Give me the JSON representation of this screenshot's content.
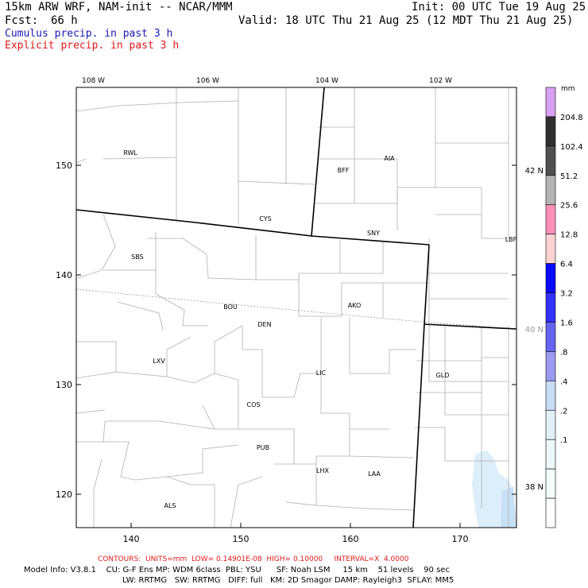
{
  "header": {
    "model_title": "15km ARW WRF, NAM-init -- NCAR/MMM",
    "init": "Init: 00 UTC Tue 19 Aug 25",
    "fcst_label": "Fcst:",
    "fcst_value": "66 h",
    "valid": "Valid: 18 UTC Thu 21 Aug 25 (12 MDT Thu 21 Aug 25)",
    "legend_cumulus": "Cumulus precip. in past 3 h",
    "legend_explicit": "Explicit precip. in past 3 h"
  },
  "colors": {
    "cumulus": "#1a1ab4",
    "explicit": "#e01818",
    "precip_light": "#dceefa"
  },
  "map": {
    "top_lon_labels": [
      "108 W",
      "106 W",
      "104 W",
      "102 W"
    ],
    "bottom_axis_ticks": [
      "140",
      "150",
      "160",
      "170"
    ],
    "left_axis_ticks": [
      "150",
      "140",
      "130",
      "120"
    ],
    "lat_labels": [
      "42 N",
      "40 N",
      "38 N"
    ],
    "stations": [
      "RWL",
      "BFF",
      "AIA",
      "CYS",
      "SNY",
      "LBF",
      "SBS",
      "BOU",
      "AKO",
      "DEN",
      "LXV",
      "LIC",
      "GLD",
      "COS",
      "PUB",
      "LHX",
      "LAA",
      "ALS"
    ]
  },
  "colorbar": {
    "unit": "mm",
    "labels": [
      "204.8",
      "102.4",
      "51.2",
      "25.6",
      "12.8",
      "6.4",
      "3.2",
      "1.6",
      ".8",
      ".4",
      ".2",
      ".1"
    ],
    "colors": [
      "#d8a0f0",
      "#303030",
      "#505050",
      "#b4b4b4",
      "#ff90b8",
      "#ffd2d2",
      "#0a0aff",
      "#3232ff",
      "#6464f0",
      "#9a9af0",
      "#c8dcf5",
      "#e2f0fa",
      "#ecf8fa",
      "#f4fcfc",
      "#ffffff"
    ]
  },
  "footer": {
    "contours": "CONTOURS:  UNITS=mm  LOW= 0.14901E-08  HIGH= 0.10000     INTERVAL=X  4.0000",
    "model_info_1": "Model Info: V3.8.1    CU: G-F Ens MP: WDM 6class  PBL: YSU      SF: Noah LSM     15 km    51 levels    90 sec",
    "model_info_2": "LW: RRTMG   SW: RRTMG   DIFF: full   KM: 2D Smagor DAMP: Rayleigh3  SFLAY: MM5"
  }
}
